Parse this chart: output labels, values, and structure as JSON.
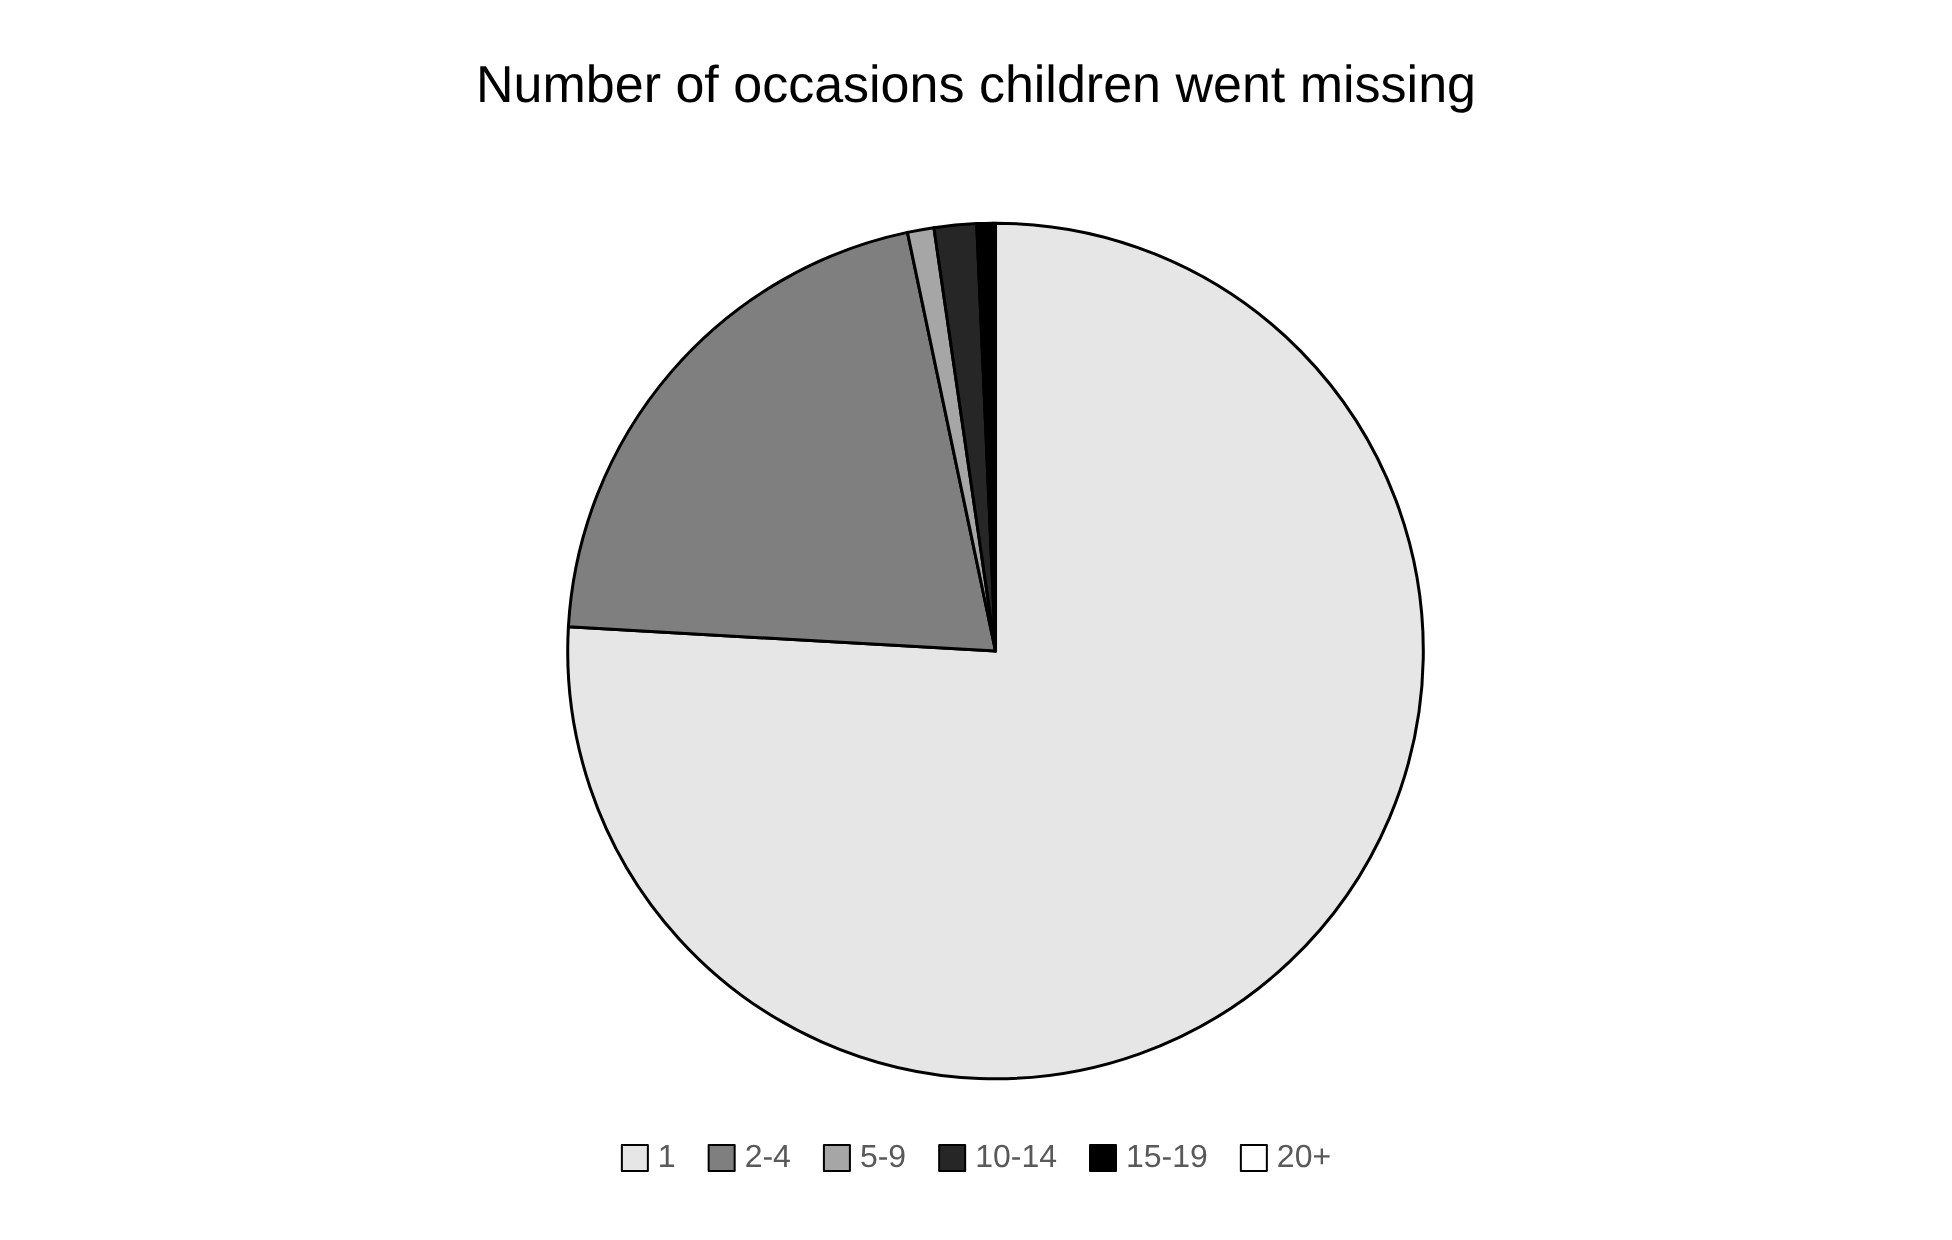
{
  "chart_data": {
    "type": "pie",
    "title": "Number of occasions children went missing",
    "categories": [
      "1",
      "2-4",
      "5-9",
      "10-14",
      "15-19",
      "20+"
    ],
    "values": [
      75.9,
      20.8,
      1.0,
      1.6,
      0.6,
      0.1
    ],
    "colors": [
      "#e6e6e6",
      "#7f7f7f",
      "#a6a6a6",
      "#262626",
      "#000000",
      "#ffffff"
    ],
    "legend": "bottom"
  }
}
